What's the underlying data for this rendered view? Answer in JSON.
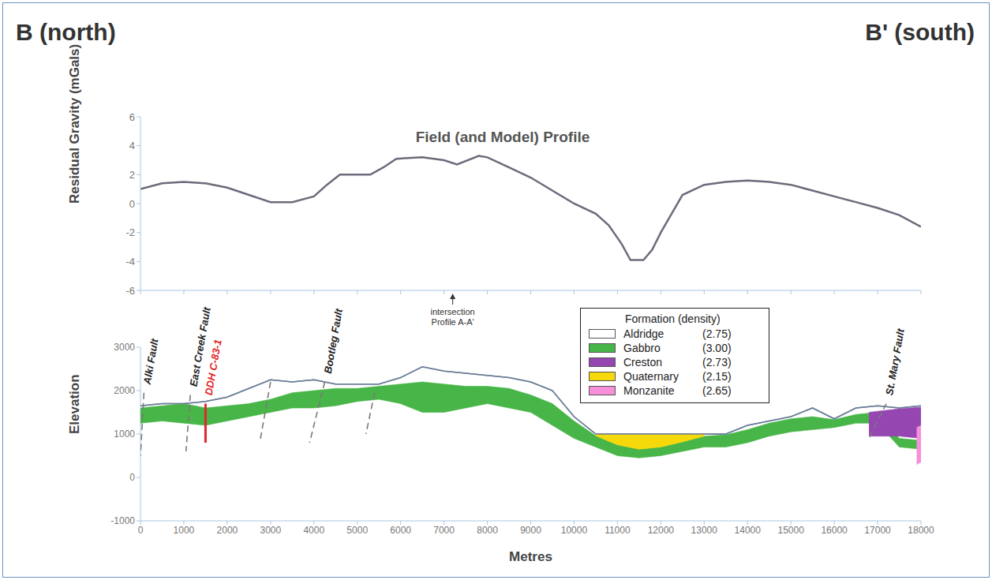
{
  "header": {
    "left": "B (north)",
    "right": "B' (south)"
  },
  "chart_data": [
    {
      "type": "line",
      "title": "Field (and Model) Profile",
      "y_label": "Residual Gravity (mGals)",
      "x": [
        0,
        500,
        1000,
        1500,
        2000,
        2500,
        3000,
        3500,
        4000,
        4300,
        4600,
        5000,
        5300,
        5600,
        5900,
        6500,
        7000,
        7300,
        7800,
        8000,
        8500,
        9000,
        9500,
        10000,
        10500,
        10800,
        11100,
        11300,
        11600,
        11800,
        12000,
        12500,
        13000,
        13500,
        14000,
        14500,
        15000,
        15500,
        16000,
        16500,
        17000,
        17500,
        18000
      ],
      "values": [
        1.0,
        1.4,
        1.5,
        1.4,
        1.1,
        0.6,
        0.1,
        0.1,
        0.5,
        1.3,
        2.0,
        2.0,
        2.0,
        2.5,
        3.1,
        3.2,
        3.0,
        2.7,
        3.3,
        3.2,
        2.5,
        1.8,
        0.9,
        0.0,
        -0.7,
        -1.5,
        -2.8,
        -3.9,
        -3.9,
        -3.2,
        -2.0,
        0.6,
        1.3,
        1.5,
        1.6,
        1.5,
        1.3,
        0.9,
        0.5,
        0.1,
        -0.3,
        -0.8,
        -1.6
      ],
      "color": "#6b6b7b",
      "xlim": [
        0,
        18000
      ],
      "xticks": [
        0,
        1000,
        2000,
        3000,
        4000,
        5000,
        6000,
        7000,
        8000,
        9000,
        10000,
        11000,
        12000,
        13000,
        14000,
        15000,
        16000,
        17000,
        18000
      ],
      "ylim": [
        -6,
        6
      ],
      "yticks": [
        -6,
        -4,
        -2,
        0,
        2,
        4,
        6
      ],
      "tick_labels": "y",
      "annotations": [
        {
          "text": "intersection Profile A-A'",
          "x": 7200
        }
      ]
    },
    {
      "type": "area",
      "x_label": "Metres",
      "y_label": "Elevation",
      "xlim": [
        0,
        18000
      ],
      "xticks": [
        0,
        1000,
        2000,
        3000,
        4000,
        5000,
        6000,
        7000,
        8000,
        9000,
        10000,
        11000,
        12000,
        13000,
        14000,
        15000,
        16000,
        17000,
        18000
      ],
      "ylim": [
        -1000,
        3000
      ],
      "yticks": [
        -1000,
        0,
        1000,
        2000,
        3000
      ],
      "legend": "top-right",
      "legend_title": "Formation (density)",
      "series": [
        {
          "name": "Aldridge",
          "density": 2.75,
          "color": "#ffffff",
          "x": [
            0,
            500,
            1000,
            1500,
            2000,
            2500,
            3000,
            3500,
            4000,
            4500,
            5000,
            5500,
            6000,
            6500,
            7000,
            7500,
            8000,
            8500,
            9000,
            9500,
            10000,
            10500,
            11000,
            11500,
            12000,
            12500,
            13000,
            13500,
            14000,
            14500,
            15000,
            15500,
            16000,
            16500,
            17000,
            17500,
            18000
          ],
          "values": [
            1650,
            1700,
            1700,
            1750,
            1850,
            2050,
            2250,
            2200,
            2250,
            2150,
            2150,
            2150,
            2300,
            2550,
            2450,
            2400,
            2350,
            2300,
            2200,
            2000,
            1400,
            1000,
            1000,
            1000,
            1000,
            1000,
            1000,
            1000,
            1200,
            1300,
            1400,
            1600,
            1350,
            1600,
            1650,
            1600,
            1650
          ]
        },
        {
          "name": "Gabbro",
          "density": 3.0,
          "color": "#47b547",
          "x": [
            0,
            500,
            1000,
            1500,
            2000,
            2500,
            3000,
            3500,
            4000,
            4500,
            5000,
            5500,
            6000,
            6500,
            7000,
            7500,
            8000,
            8500,
            9000,
            9500,
            10000,
            10500,
            11000,
            11500,
            12000,
            12500,
            13000,
            13500,
            14000,
            14500,
            15000,
            15500,
            16000,
            16500,
            17000,
            17500,
            18000
          ],
          "values": [
            [
              1250,
              1600
            ],
            [
              1300,
              1650
            ],
            [
              1250,
              1700
            ],
            [
              1200,
              1600
            ],
            [
              1300,
              1650
            ],
            [
              1400,
              1700
            ],
            [
              1500,
              1800
            ],
            [
              1600,
              1950
            ],
            [
              1600,
              2000
            ],
            [
              1650,
              2050
            ],
            [
              1750,
              2050
            ],
            [
              1800,
              2100
            ],
            [
              1700,
              2150
            ],
            [
              1500,
              2200
            ],
            [
              1500,
              2150
            ],
            [
              1600,
              2100
            ],
            [
              1700,
              2100
            ],
            [
              1600,
              2050
            ],
            [
              1500,
              1900
            ],
            [
              1200,
              1700
            ],
            [
              900,
              1300
            ],
            [
              700,
              960
            ],
            [
              500,
              750
            ],
            [
              450,
              650
            ],
            [
              500,
              700
            ],
            [
              600,
              820
            ],
            [
              700,
              950
            ],
            [
              700,
              980
            ],
            [
              800,
              1100
            ],
            [
              950,
              1250
            ],
            [
              1050,
              1350
            ],
            [
              1100,
              1400
            ],
            [
              1150,
              1330
            ],
            [
              1250,
              1450
            ],
            [
              1250,
              1500
            ],
            [
              700,
              900
            ],
            [
              650,
              850
            ]
          ]
        },
        {
          "name": "Creston",
          "density": 2.73,
          "color": "#9546b0",
          "x": [
            16800,
            17500,
            18000
          ],
          "values": [
            [
              950,
              1500
            ],
            [
              950,
              1580
            ],
            [
              900,
              1620
            ]
          ]
        },
        {
          "name": "Quaternary",
          "density": 2.15,
          "color": "#f5d90a",
          "x": [
            10500,
            11000,
            11500,
            12000,
            12500,
            13000
          ],
          "values": [
            [
              960,
              1000
            ],
            [
              750,
              990
            ],
            [
              650,
              990
            ],
            [
              700,
              990
            ],
            [
              820,
              995
            ],
            [
              950,
              1000
            ]
          ]
        },
        {
          "name": "Monzanite",
          "density": 2.65,
          "color": "#f78fda",
          "x": [
            17900,
            18000
          ],
          "values": [
            [
              300,
              1150
            ],
            [
              350,
              1200
            ]
          ]
        }
      ],
      "faults": [
        {
          "name": "Alki Fault",
          "x": [
            80,
            0
          ],
          "y": [
            1950,
            500
          ],
          "line_style": "dashed",
          "color": "#7a7a7a"
        },
        {
          "name": "East Creek Fault",
          "x": [
            1150,
            1050
          ],
          "y": [
            1900,
            600
          ],
          "line_style": "dashed",
          "color": "#7a7a7a"
        },
        {
          "x": [
            3000,
            2750
          ],
          "y": [
            2200,
            800
          ],
          "line_style": "dashed",
          "color": "#7a7a7a"
        },
        {
          "name": "Bootleg Fault",
          "x": [
            4250,
            3900
          ],
          "y": [
            2200,
            800
          ],
          "line_style": "dashed",
          "color": "#7a7a7a"
        },
        {
          "x": [
            5400,
            5200
          ],
          "y": [
            1950,
            1000
          ],
          "line_style": "dashed",
          "color": "#7a7a7a"
        },
        {
          "name": "St. Mary Fault",
          "x": [
            17200,
            16800
          ],
          "y": [
            1700,
            900
          ],
          "line_style": "dashed",
          "color": "#7a7a7a"
        }
      ],
      "drill_holes": [
        {
          "name": "DDH C-83-1",
          "x": [
            1500,
            1500
          ],
          "y": [
            1700,
            800
          ],
          "line_style": "solid",
          "color": "#e0262b"
        }
      ]
    }
  ]
}
